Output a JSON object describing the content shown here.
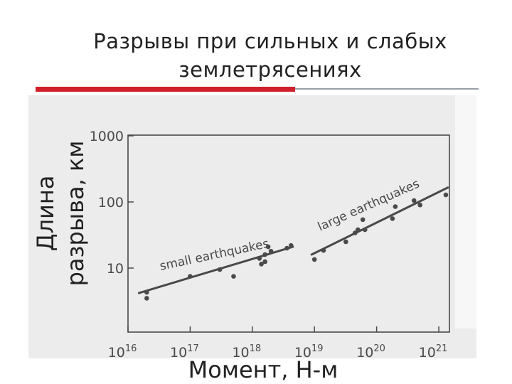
{
  "slide": {
    "title_line1": "Разрывы при сильных и слабых",
    "title_line2": "землетрясениях"
  },
  "colors": {
    "accent_red": "#d0202a",
    "rule_grey": "#9aa0a8",
    "ink": "#4a4a4a"
  },
  "chart_data": {
    "type": "scatter",
    "xlabel": "Момент, Н-м",
    "ylabel_line1": "Длина",
    "ylabel_line2": "разрыва, км",
    "x_scale": "log",
    "y_scale": "log",
    "xlim": [
      1e+16,
      1e+21
    ],
    "ylim": [
      3,
      1000
    ],
    "x_ticks": [
      {
        "value": 1e+16,
        "base": "10",
        "exp": "16"
      },
      {
        "value": 1e+17,
        "base": "10",
        "exp": "17"
      },
      {
        "value": 1e+18,
        "base": "10",
        "exp": "18"
      },
      {
        "value": 1e+19,
        "base": "10",
        "exp": "19"
      },
      {
        "value": 1e+20,
        "base": "10",
        "exp": "20"
      },
      {
        "value": 1e+21,
        "base": "10",
        "exp": "21"
      }
    ],
    "y_ticks": [
      {
        "value": 10,
        "label": "10"
      },
      {
        "value": 100,
        "label": "100"
      },
      {
        "value": 1000,
        "label": "1000"
      }
    ],
    "grid": false,
    "series": [
      {
        "name": "small earthquakes",
        "points": [
          {
            "x": 2e+16,
            "y": 4.3
          },
          {
            "x": 2e+16,
            "y": 3.5
          },
          {
            "x": 1e+17,
            "y": 7.5
          },
          {
            "x": 3e+17,
            "y": 9.5
          },
          {
            "x": 5e+17,
            "y": 7.5
          },
          {
            "x": 1.3e+18,
            "y": 14
          },
          {
            "x": 1.4e+18,
            "y": 11.5
          },
          {
            "x": 1.6e+18,
            "y": 12.5
          },
          {
            "x": 1.6e+18,
            "y": 16
          },
          {
            "x": 1.8e+18,
            "y": 21
          },
          {
            "x": 2e+18,
            "y": 18
          },
          {
            "x": 3.6e+18,
            "y": 20
          },
          {
            "x": 4.2e+18,
            "y": 22
          }
        ],
        "fit": {
          "x": [
            1.5e+16,
            4.5e+18
          ],
          "y": [
            4.2,
            21
          ]
        }
      },
      {
        "name": "large earthquakes",
        "points": [
          {
            "x": 1e+19,
            "y": 13.5
          },
          {
            "x": 1.4e+19,
            "y": 18.5
          },
          {
            "x": 3.2e+19,
            "y": 25
          },
          {
            "x": 4.5e+19,
            "y": 34
          },
          {
            "x": 5e+19,
            "y": 38
          },
          {
            "x": 6e+19,
            "y": 54
          },
          {
            "x": 6.5e+19,
            "y": 38
          },
          {
            "x": 1.8e+20,
            "y": 56
          },
          {
            "x": 2e+20,
            "y": 85
          },
          {
            "x": 4e+20,
            "y": 105
          },
          {
            "x": 5e+20,
            "y": 90
          },
          {
            "x": 1.3e+21,
            "y": 128
          }
        ],
        "fit": {
          "x": [
            9e+18,
            1.4e+21
          ],
          "y": [
            16,
            165
          ]
        }
      }
    ]
  }
}
